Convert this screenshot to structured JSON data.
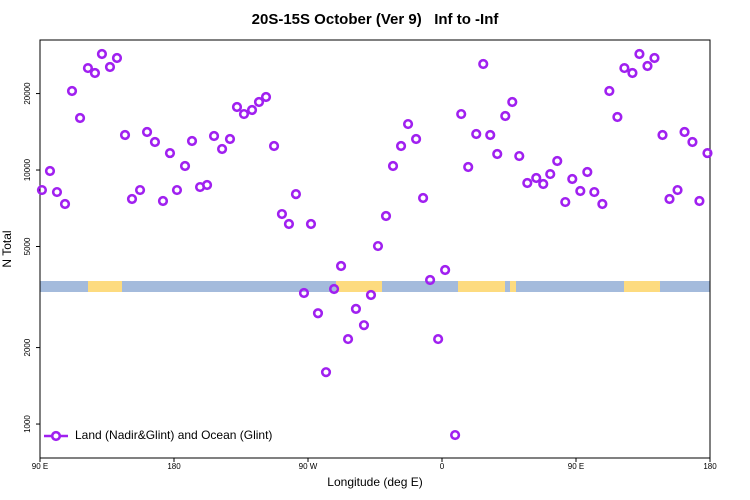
{
  "chart_data": {
    "type": "scatter",
    "title": "20S-15S October (Ver 9)   Inf to -Inf",
    "xlabel": "Longitude (deg E)",
    "ylabel": "N Total",
    "xlim": [
      90,
      540
    ],
    "xticks": [
      {
        "value": 90,
        "label": "90 E"
      },
      {
        "value": 180,
        "label": "180"
      },
      {
        "value": 270,
        "label": "90 W"
      },
      {
        "value": 360,
        "label": "0"
      },
      {
        "value": 450,
        "label": "90 E"
      },
      {
        "value": 540,
        "label": "180"
      }
    ],
    "ylim": [
      735,
      32500
    ],
    "yticks": [
      1000,
      2000,
      5000,
      10000,
      20000
    ],
    "ylog": true,
    "legend": "bottom-left",
    "series": [
      {
        "name": "Land (Nadir&Glint) and Ocean (Glint)",
        "color": "#a020f0",
        "x": [
          91.3,
          96.7,
          101.4,
          106.8,
          111.5,
          116.9,
          122.2,
          126.9,
          131.6,
          137.0,
          141.7,
          147.1,
          151.8,
          157.2,
          161.9,
          167.2,
          172.6,
          177.3,
          182.0,
          187.4,
          192.1,
          197.5,
          202.2,
          206.9,
          212.3,
          217.6,
          222.3,
          227.0,
          232.4,
          237.1,
          241.8,
          247.2,
          252.5,
          257.2,
          261.9,
          267.3,
          272.0,
          276.7,
          282.1,
          287.5,
          292.2,
          296.9,
          302.2,
          307.6,
          312.3,
          317.0,
          322.4,
          327.1,
          332.5,
          337.2,
          342.6,
          347.3,
          352.0,
          357.4,
          362.1,
          368.8,
          372.9,
          377.6,
          383.0,
          387.7,
          392.4,
          397.1,
          402.5,
          407.2,
          411.9,
          417.3,
          423.3,
          428.0,
          432.7,
          437.4,
          442.8,
          447.5,
          452.9,
          457.6,
          462.3,
          467.7,
          472.4,
          477.8,
          482.5,
          487.9,
          492.6,
          498.0,
          502.7,
          508.1,
          512.8,
          518.2,
          522.9,
          528.2,
          532.9,
          538.3
        ],
        "values": [
          8340,
          9910,
          8190,
          7350,
          20470,
          16030,
          25200,
          24100,
          28630,
          25450,
          27600,
          13740,
          7690,
          8340,
          14120,
          12890,
          7550,
          11660,
          8340,
          10370,
          13010,
          8570,
          8730,
          13610,
          12100,
          13250,
          17700,
          16610,
          17230,
          18530,
          19380,
          12430,
          6710,
          6130,
          8040,
          3280,
          6130,
          2730,
          1600,
          3400,
          4190,
          2160,
          2840,
          2450,
          3220,
          5020,
          6590,
          10370,
          12430,
          15170,
          13250,
          7760,
          3690,
          2160,
          4040,
          905,
          16610,
          10280,
          13860,
          26150,
          13740,
          11560,
          16320,
          18530,
          11350,
          8890,
          9300,
          8810,
          9640,
          10850,
          7480,
          9220,
          8270,
          9820,
          8190,
          7350,
          20470,
          16170,
          25200,
          24100,
          28630,
          25670,
          27600,
          13740,
          7690,
          8340,
          14120,
          12890,
          7550,
          11660
        ]
      }
    ]
  }
}
